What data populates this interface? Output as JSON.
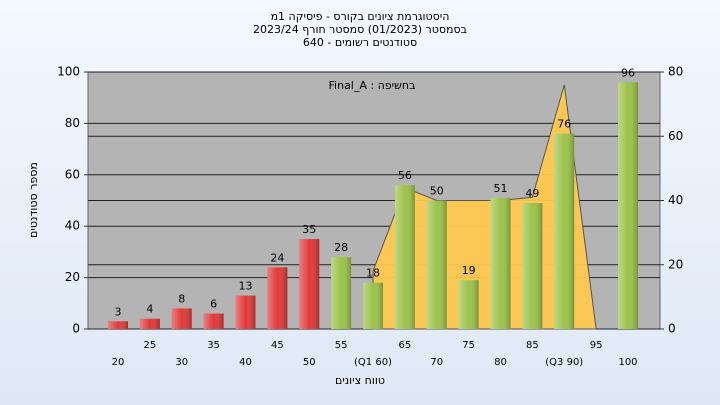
{
  "chart_data": {
    "type": "bar",
    "title_lines": [
      "היסטוגרמת ציונים בקורס - פיסיקה 1מ",
      "בסמסטר  (01/2023)  סמסטר חורף 2023/24",
      "סטודנטים רשומים - 640"
    ],
    "annotation": "בחשיפה : Final_A",
    "x_label": "טווח ציונים",
    "y_label": "מספר סטודנטים",
    "categories": [
      "20",
      "25",
      "30",
      "35",
      "40",
      "45",
      "50",
      "55",
      "(Q1 60)",
      "65",
      "70",
      "75",
      "80",
      "85",
      "(Q3 90)",
      "95",
      "100"
    ],
    "values": [
      3,
      4,
      8,
      6,
      13,
      24,
      35,
      28,
      18,
      56,
      50,
      19,
      51,
      49,
      76,
      null,
      96
    ],
    "colors": [
      "#e03a3a",
      "#e03a3a",
      "#e03a3a",
      "#e03a3a",
      "#e03a3a",
      "#e03a3a",
      "#e03a3a",
      "#9cc24a",
      "#9cc24a",
      "#9cc24a",
      "#9cc24a",
      "#9cc24a",
      "#9cc24a",
      "#9cc24a",
      "#9cc24a",
      "#9cc24a",
      "#9cc24a"
    ],
    "area": {
      "axis": "y2",
      "color": "#ffc850",
      "values": [
        null,
        null,
        null,
        null,
        null,
        null,
        null,
        null,
        18,
        44,
        40,
        40,
        40,
        41,
        76,
        0,
        null
      ]
    },
    "ylim": [
      0,
      100
    ],
    "yticks": [
      0,
      20,
      40,
      60,
      80,
      100
    ],
    "y2lim": [
      0,
      80
    ],
    "y2ticks": [
      0,
      20,
      40,
      60,
      80
    ],
    "grid": true
  }
}
